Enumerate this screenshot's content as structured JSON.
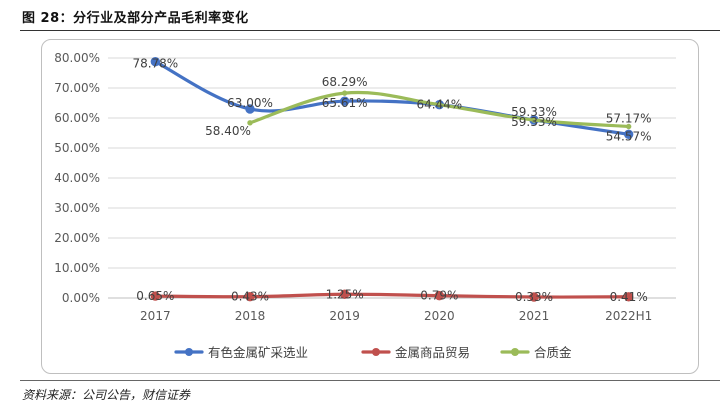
{
  "figure_title": "图 28：分行业及部分产品毛利率变化",
  "source": "资料来源：公司公告，财信证券",
  "chart_data": {
    "type": "line",
    "x": [
      "2017",
      "2018",
      "2019",
      "2020",
      "2021",
      "2022H1"
    ],
    "ylim": [
      0,
      80
    ],
    "yticks": [
      "0.00%",
      "10.00%",
      "20.00%",
      "30.00%",
      "40.00%",
      "50.00%",
      "60.00%",
      "70.00%",
      "80.00%"
    ],
    "grid": true,
    "legend_position": "bottom",
    "series": [
      {
        "name": "有色金属矿采选业",
        "color": "#4472C4",
        "values": [
          78.78,
          63.0,
          65.61,
          64.44,
          59.33,
          54.57
        ],
        "labels": [
          "78.78%",
          "63.00%",
          "65.61%",
          "64.44%",
          "59.33%",
          "54.57%"
        ]
      },
      {
        "name": "金属商品贸易",
        "color": "#C0504D",
        "values": [
          0.65,
          0.43,
          1.25,
          0.79,
          0.33,
          0.41
        ],
        "labels": [
          "0.65%",
          "0.43%",
          "1.25%",
          "0.79%",
          "0.33%",
          "0.41%"
        ]
      },
      {
        "name": "合质金",
        "color": "#9BBB59",
        "values": [
          null,
          58.4,
          68.29,
          64.44,
          59.33,
          57.17
        ],
        "labels": [
          "",
          "58.40%",
          "68.29%",
          "",
          "59.33%",
          "57.17%"
        ]
      }
    ]
  }
}
